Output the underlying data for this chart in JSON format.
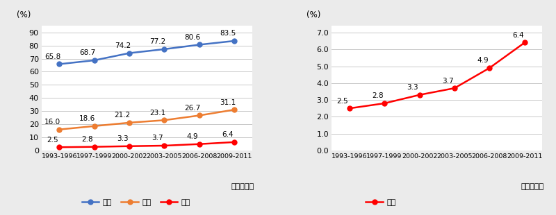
{
  "x_labels": [
    "1993-1996",
    "1997-1999",
    "2000-2002",
    "2003-2005",
    "2006-2008",
    "2009-2011"
  ],
  "left": {
    "genkyoku": [
      65.8,
      68.7,
      74.2,
      77.2,
      80.6,
      83.5
    ],
    "ryouiki": [
      16.0,
      18.6,
      21.2,
      23.1,
      26.7,
      31.1
    ],
    "enkaku": [
      2.5,
      2.8,
      3.3,
      3.7,
      4.9,
      6.4
    ],
    "ylim": [
      0,
      95
    ],
    "yticks": [
      0,
      10,
      20,
      30,
      40,
      50,
      60,
      70,
      80,
      90
    ],
    "ylabel": "(%)",
    "genkyoku_color": "#4472C4",
    "ryouiki_color": "#ED7D31",
    "enkaku_color": "#FF0000"
  },
  "right": {
    "enkaku": [
      2.5,
      2.8,
      3.3,
      3.7,
      4.9,
      6.4
    ],
    "ylim": [
      0.0,
      7.4
    ],
    "yticks": [
      0.0,
      1.0,
      2.0,
      3.0,
      4.0,
      5.0,
      6.0,
      7.0
    ],
    "ylabel": "(%)",
    "enkaku_color": "#FF0000"
  },
  "legend_left": [
    "限局",
    "領域",
    "遠隔"
  ],
  "legend_right": [
    "遠隔"
  ],
  "xlabel_note": "（診断年）",
  "background_color": "#ebebeb",
  "plot_background": "#ffffff",
  "grid_color": "#c8c8c8",
  "marker_size": 5,
  "line_width": 1.8
}
